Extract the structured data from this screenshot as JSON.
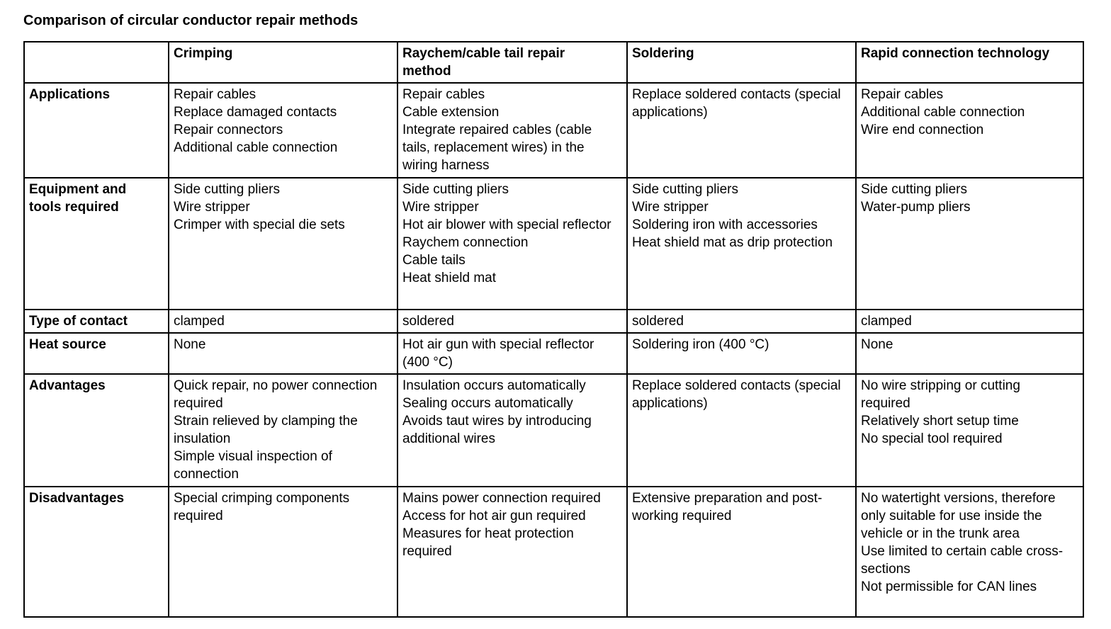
{
  "page_title": "Comparison of circular conductor repair methods",
  "colors": {
    "background": "#ffffff",
    "text": "#000000",
    "border": "#000000"
  },
  "table": {
    "corner": "",
    "column_headers": [
      "Crimping",
      "Raychem/cable tail repair method",
      "Soldering",
      "Rapid connection technology"
    ],
    "rows": [
      {
        "label": "Applications",
        "cells": [
          [
            "Repair cables",
            "Replace damaged contacts",
            "Repair connectors",
            "Additional cable connection"
          ],
          [
            "Repair cables",
            "Cable extension",
            "Integrate repaired cables (cable tails, replacement wires) in the wiring harness"
          ],
          [
            "Replace soldered contacts (special applications)"
          ],
          [
            "Repair cables",
            "Additional cable connection",
            "Wire end connection"
          ]
        ]
      },
      {
        "label": "Equipment and tools required",
        "cells": [
          [
            "Side cutting pliers",
            "Wire stripper",
            "Crimper with special die sets"
          ],
          [
            "Side cutting pliers",
            "Wire stripper",
            "Hot air blower with special reflector",
            "Raychem connection",
            "Cable tails",
            "Heat shield mat"
          ],
          [
            "Side cutting pliers",
            "Wire stripper",
            "Soldering iron with accessories",
            "Heat shield mat as drip protection"
          ],
          [
            "Side cutting pliers",
            "Water-pump pliers"
          ]
        ]
      },
      {
        "label": "Type of contact",
        "cells": [
          [
            "clamped"
          ],
          [
            "soldered"
          ],
          [
            "soldered"
          ],
          [
            "clamped"
          ]
        ]
      },
      {
        "label": "Heat source",
        "cells": [
          [
            "None"
          ],
          [
            "Hot air gun with special reflector (400 °C)"
          ],
          [
            "Soldering iron (400 °C)"
          ],
          [
            "None"
          ]
        ]
      },
      {
        "label": "Advantages",
        "cells": [
          [
            "Quick repair, no power connection required",
            "Strain relieved by clamping the insulation",
            "Simple visual inspection of connection"
          ],
          [
            "Insulation occurs automatically",
            "Sealing occurs automatically",
            "Avoids taut wires by introducing additional wires"
          ],
          [
            "Replace soldered contacts (special applications)"
          ],
          [
            "No wire stripping or cutting required",
            "Relatively short setup time",
            "No special tool required"
          ]
        ]
      },
      {
        "label": "Disadvantages",
        "cells": [
          [
            "Special crimping components required"
          ],
          [
            "Mains power connection required",
            "Access for hot air gun required",
            "Measures for heat protection required"
          ],
          [
            "Extensive preparation and post-working required"
          ],
          [
            "No watertight versions, therefore only suitable for use inside the vehicle or in the trunk area",
            "Use limited to certain cable cross-sections",
            "Not permissible for CAN lines"
          ]
        ]
      }
    ]
  }
}
